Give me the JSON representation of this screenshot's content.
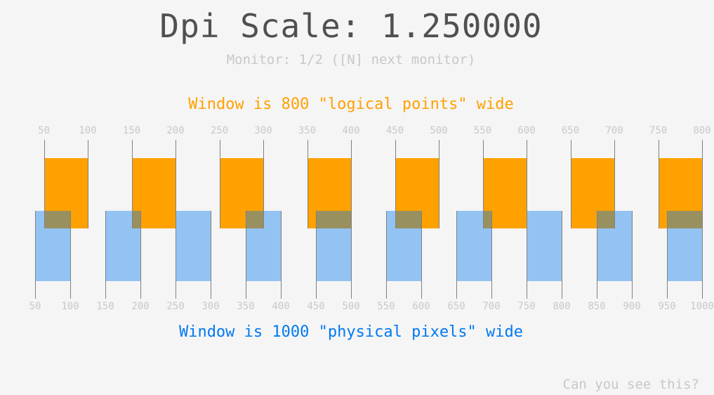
{
  "title": "Dpi Scale: 1.250000",
  "monitor_text": "Monitor: 1/2 ([N] next monitor)",
  "logical_text": "Window is 800 \"logical points\" wide",
  "physical_text": "Window is 1000 \"physical pixels\" wide",
  "corner_text": "Can you see this?",
  "dpi_scale": 1.25,
  "logical_ticks": [
    "50",
    "100",
    "150",
    "200",
    "250",
    "300",
    "350",
    "400",
    "450",
    "500",
    "550",
    "600",
    "650",
    "700",
    "750",
    "800"
  ],
  "physical_ticks": [
    "50",
    "100",
    "150",
    "200",
    "250",
    "300",
    "350",
    "400",
    "450",
    "500",
    "550",
    "600",
    "650",
    "700",
    "750",
    "800",
    "850",
    "900",
    "950",
    "1000"
  ],
  "colors": {
    "logical": "#ffa100",
    "physical": "#0079f1",
    "background": "#f5f5f5"
  }
}
